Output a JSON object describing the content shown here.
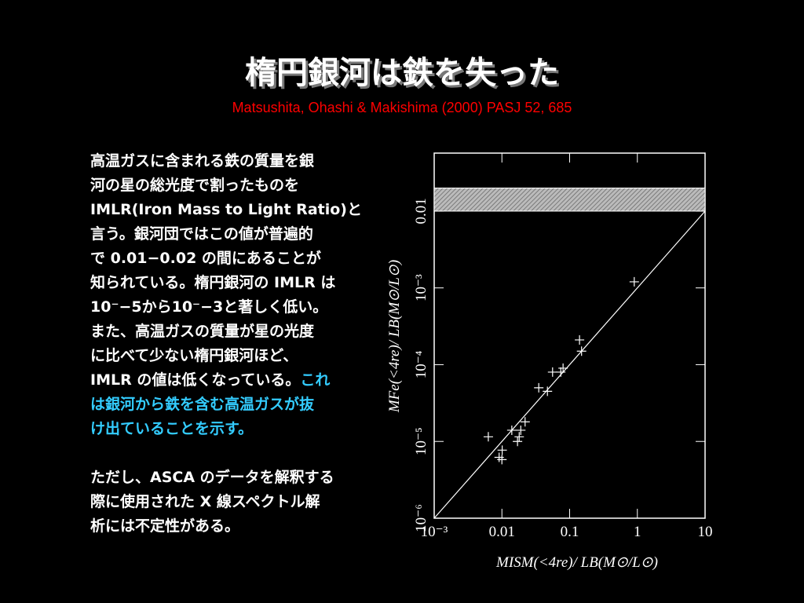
{
  "slide": {
    "title": "楕円銀河は鉄を失った",
    "citation": "Matsushita, Ohashi & Makishima (2000) PASJ 52, 685",
    "text_color": "#ffffff",
    "highlight_color": "#33ccff",
    "body": [
      [
        {
          "text": "高温ガスに含まれる鉄の質量を銀"
        }
      ],
      [
        {
          "text": "河の星の総光度で割ったものを"
        }
      ],
      [
        {
          "text": "IMLR(Iron Mass to Light Ratio)と"
        }
      ],
      [
        {
          "text": "言う。銀河団ではこの値が普遍的"
        }
      ],
      [
        {
          "text": "で 0.01−0.02 の間にあることが"
        }
      ],
      [
        {
          "text": "知られている。楕円銀河の IMLR は"
        }
      ],
      [
        {
          "text": "10⁻−5から10⁻−3と著しく低い。"
        }
      ],
      [
        {
          "text": "また、高温ガスの質量が星の光度"
        }
      ],
      [
        {
          "text": "に比べて少ない楕円銀河ほど、"
        }
      ],
      [
        {
          "text": "IMLR の値は低くなっている。"
        },
        {
          "text": "これ",
          "highlight": true
        }
      ],
      [
        {
          "text": "は銀河から鉄を含む高温ガスが抜",
          "highlight": true
        }
      ],
      [
        {
          "text": "け出ていることを示す。",
          "highlight": true
        }
      ],
      null,
      [
        {
          "text": "ただし、ASCA のデータを解釈する"
        }
      ],
      [
        {
          "text": "際に使用された X 線スペクトル解"
        }
      ],
      [
        {
          "text": "析には不定性がある。"
        }
      ]
    ]
  },
  "chart_data": {
    "type": "scatter",
    "x_label": "MISM(<4re)/ LB(M⊙/L⊙)",
    "y_label": "MFe(<4re)/ LB(M⊙/L⊙)",
    "log_x": true,
    "log_y": true,
    "xlim": [
      0.001,
      10
    ],
    "ylim": [
      1e-06,
      0.057
    ],
    "xticks": [
      {
        "value": 0.001,
        "label": "10⁻³"
      },
      0.01,
      0.1,
      1,
      10
    ],
    "yticks": [
      {
        "value": 1e-06,
        "label": "10⁻⁶"
      },
      {
        "value": 1e-05,
        "label": "10⁻⁵"
      },
      {
        "value": 0.0001,
        "label": "10⁻⁴"
      },
      {
        "value": 0.001,
        "label": "10⁻³"
      },
      0.01
    ],
    "color": "#ffffff",
    "x": [
      0.9,
      0.15,
      0.14,
      0.074,
      0.08,
      0.056,
      0.047,
      0.035,
      0.022,
      0.019,
      0.018,
      0.014,
      0.017,
      0.0101,
      0.0063,
      0.0091,
      0.01
    ],
    "values": [
      0.0012,
      0.00015,
      0.00021,
      8e-05,
      9e-05,
      8e-05,
      4.5e-05,
      5e-05,
      1.8e-05,
      1.4e-05,
      1.15e-05,
      1.4e-05,
      1e-05,
      7.7e-06,
      1.15e-05,
      6.2e-06,
      5.8e-06
    ],
    "band": [
      0.01,
      0.02
    ],
    "reference_line": {
      "x": [
        0.001,
        10
      ],
      "y": [
        1e-06,
        0.01
      ]
    }
  }
}
